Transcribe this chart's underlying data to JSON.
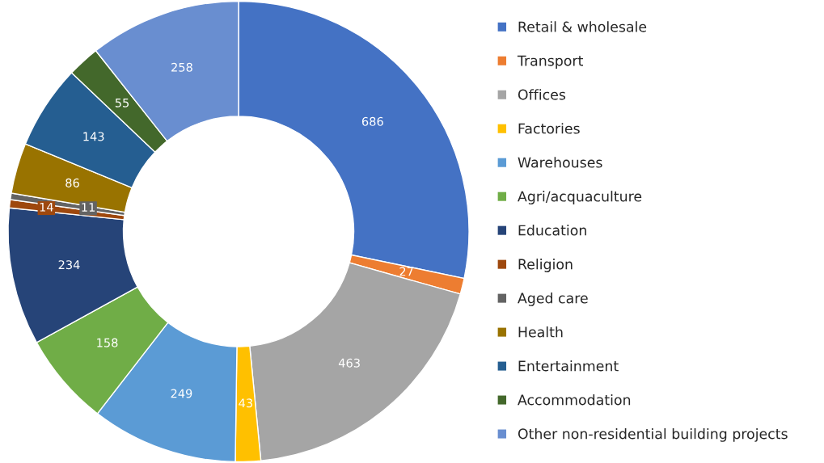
{
  "chart_data": {
    "type": "donut",
    "categories": [
      "Retail & wholesale",
      "Transport",
      "Offices",
      "Factories",
      "Warehouses",
      "Agri/acquaculture",
      "Education",
      "Religion",
      "Aged care",
      "Health",
      "Entertainment",
      "Accommodation",
      "Other non-residential building projects"
    ],
    "values": [
      686,
      27,
      463,
      43,
      249,
      158,
      234,
      14,
      11,
      86,
      143,
      55,
      258
    ],
    "colors": [
      "#4472c4",
      "#ed7d31",
      "#a5a5a5",
      "#ffc000",
      "#5b9bd5",
      "#70ad47",
      "#264478",
      "#9e480e",
      "#636363",
      "#997300",
      "#255e91",
      "#43682b",
      "#698ed0"
    ],
    "data_labels": true,
    "legend": "right"
  }
}
